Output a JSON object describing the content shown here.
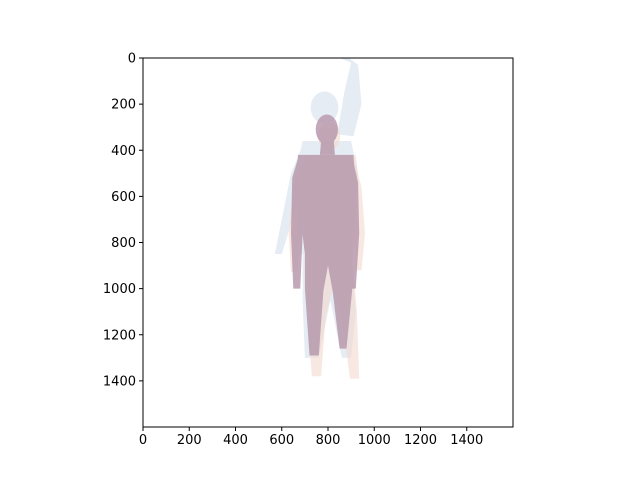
{
  "chart_data": {
    "type": "image",
    "title": "",
    "xlabel": "",
    "ylabel": "",
    "xlim": [
      0,
      1600
    ],
    "ylim": [
      1600,
      0
    ],
    "y_inverted": true,
    "x_ticks": [
      0,
      200,
      400,
      600,
      800,
      1000,
      1200,
      1400
    ],
    "y_ticks": [
      0,
      200,
      400,
      600,
      800,
      1000,
      1200,
      1400
    ],
    "grid": false,
    "legend": "none",
    "image_content": {
      "description_name": "overlaid-human-body-meshes",
      "figures": [
        {
          "name": "pale-blue-figure",
          "color": "#dde6ef",
          "opacity": 0.75,
          "pose": "right-arm-raised",
          "x_range": [
            570,
            960
          ],
          "y_range": [
            0,
            1300
          ]
        },
        {
          "name": "pink-figure",
          "color": "#f3d9cf",
          "opacity": 0.6,
          "pose": "standing",
          "x_range": [
            620,
            960
          ],
          "y_range": [
            270,
            1390
          ]
        },
        {
          "name": "mauve-figure",
          "color": "#b89aad",
          "opacity": 0.85,
          "pose": "standing",
          "x_range": [
            640,
            940
          ],
          "y_range": [
            230,
            1290
          ]
        }
      ]
    }
  }
}
